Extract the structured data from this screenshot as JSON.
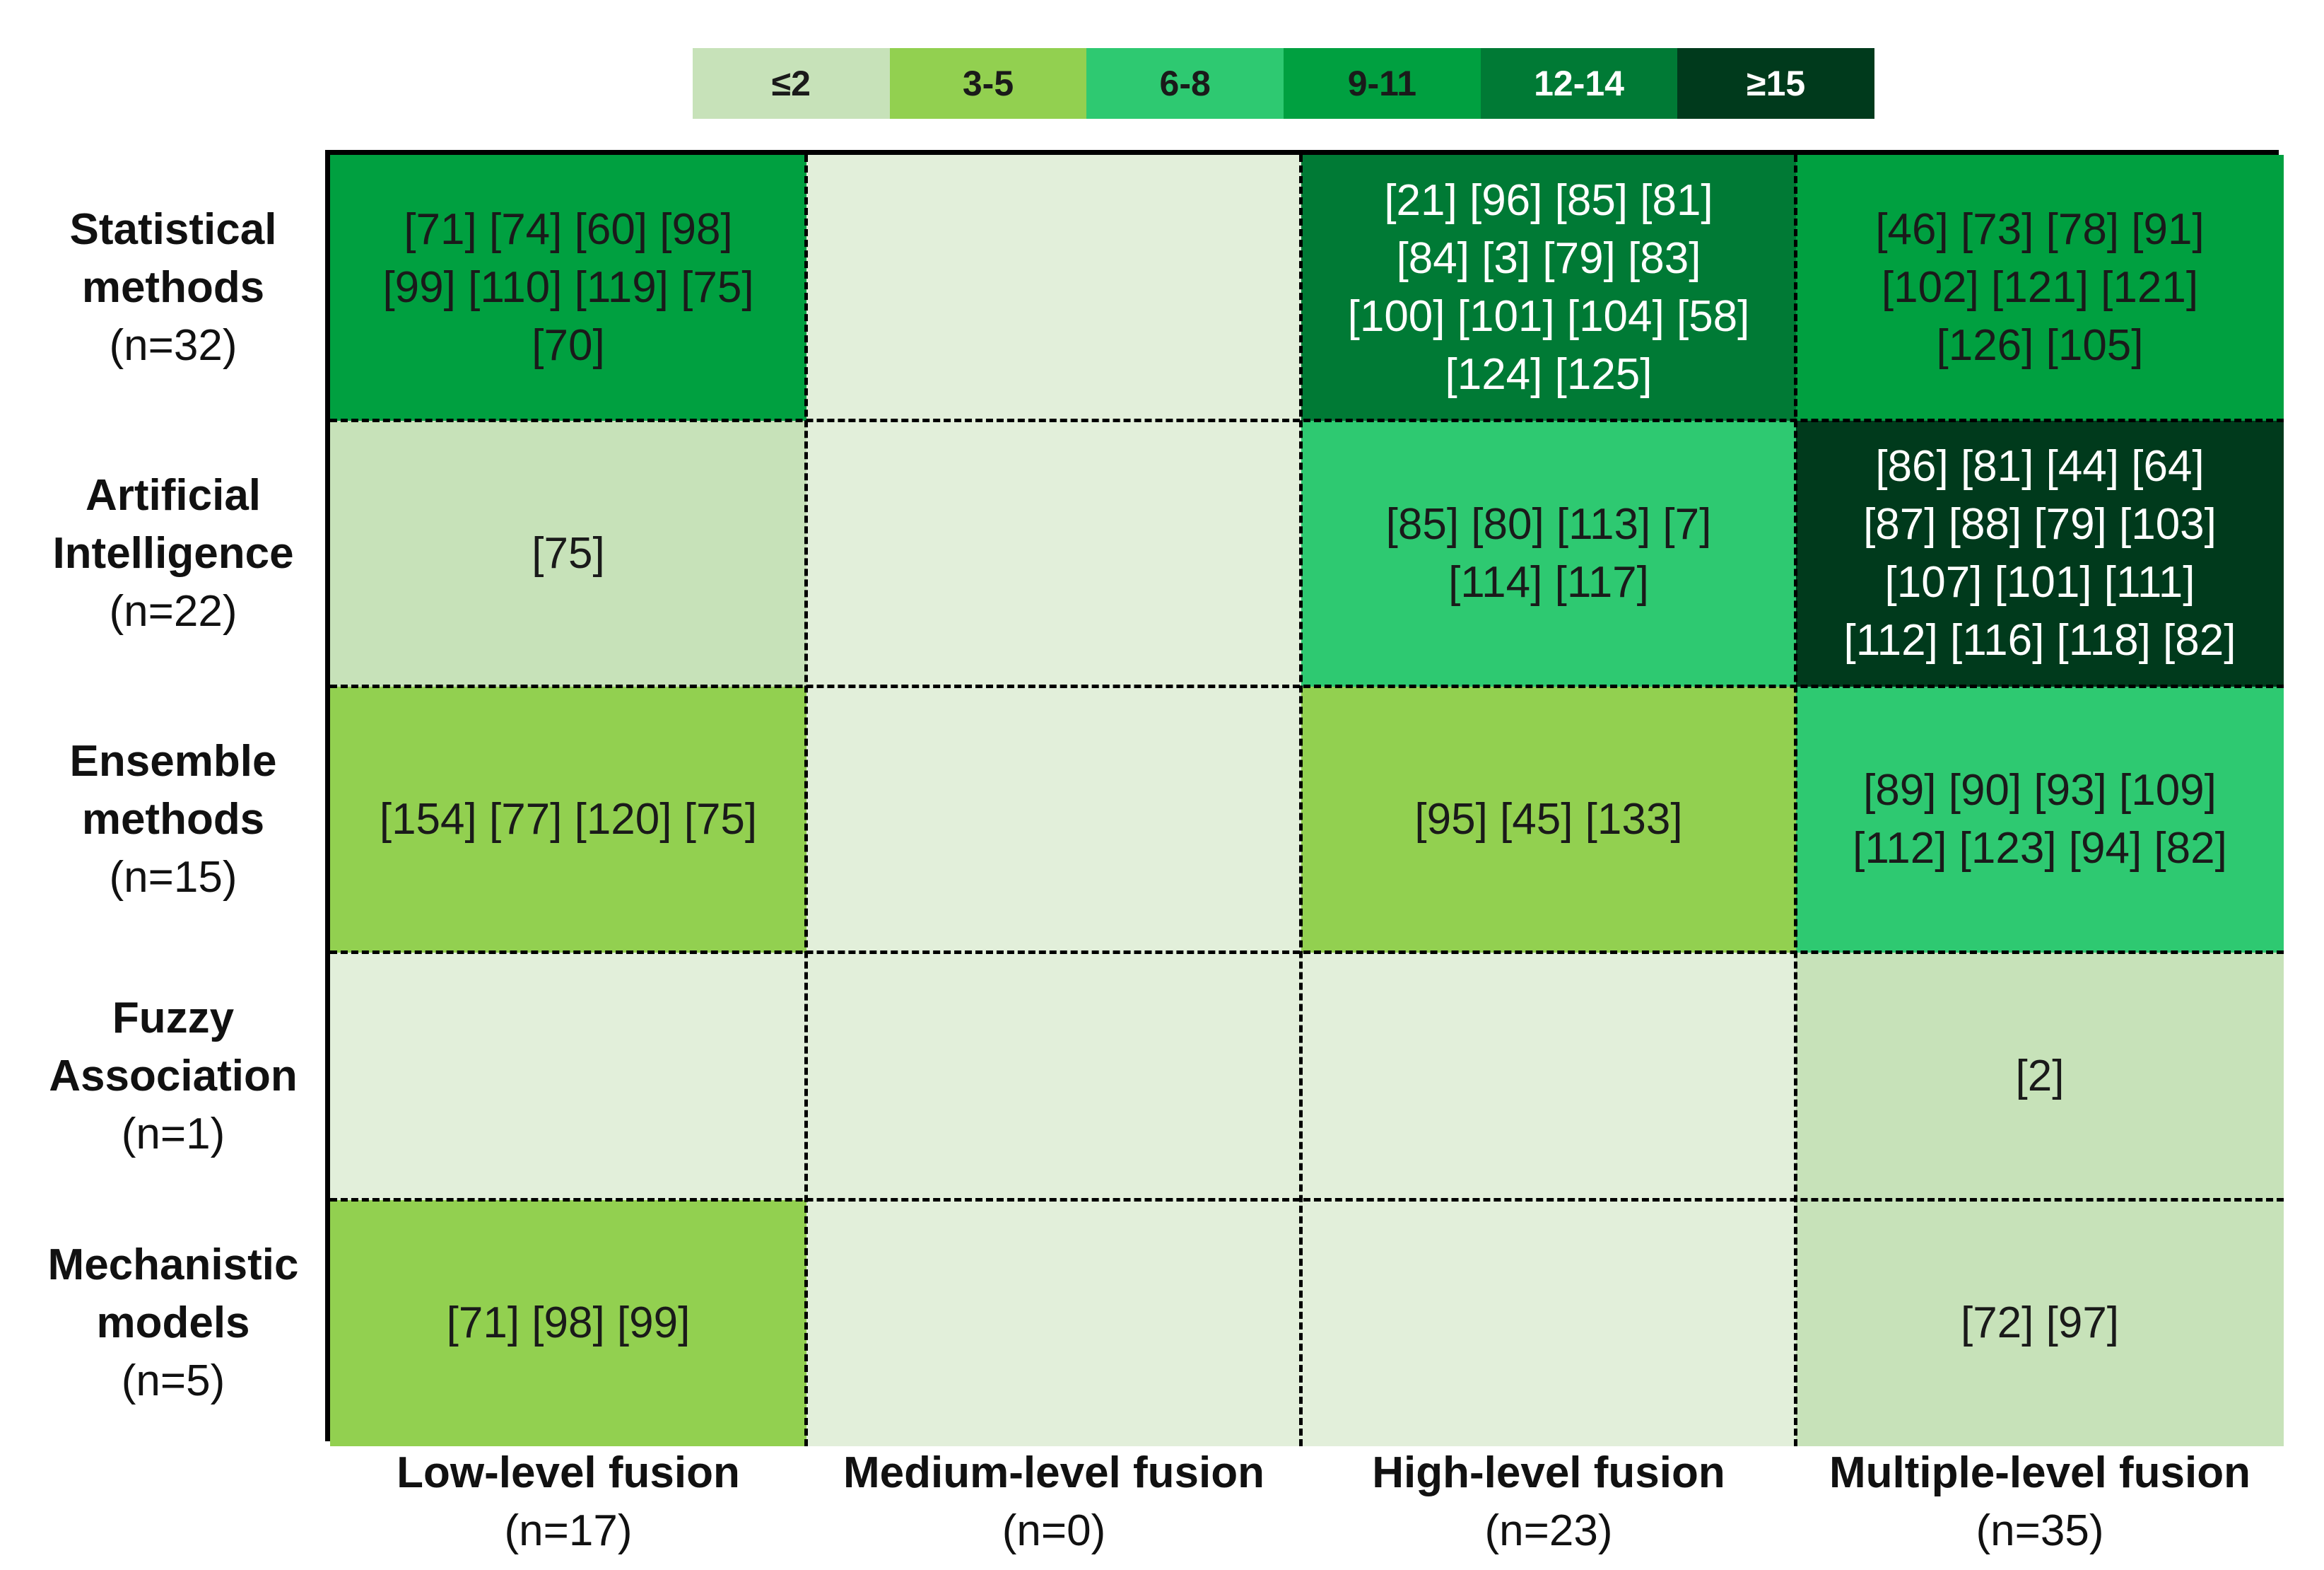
{
  "chart_data": {
    "type": "heatmap",
    "legend": {
      "bins": [
        {
          "label": "≤2",
          "color": "#c7e2b9",
          "text_color": "#1a1a1a"
        },
        {
          "label": "3-5",
          "color": "#92d050",
          "text_color": "#1a1a1a"
        },
        {
          "label": "6-8",
          "color": "#2ec971",
          "text_color": "#1a1a1a"
        },
        {
          "label": "9-11",
          "color": "#00a040",
          "text_color": "#1a1a1a"
        },
        {
          "label": "12-14",
          "color": "#007a35",
          "text_color": "#ffffff"
        },
        {
          "label": "≥15",
          "color": "#003a1c",
          "text_color": "#ffffff"
        }
      ]
    },
    "empty_color": "#e2efda",
    "columns": [
      {
        "name": "Low-level fusion",
        "count": "(n=17)"
      },
      {
        "name": "Medium-level fusion",
        "count": "(n=0)"
      },
      {
        "name": "High-level fusion",
        "count": "(n=23)"
      },
      {
        "name": "Multiple-level fusion",
        "count": "(n=35)"
      }
    ],
    "rows": [
      {
        "name_lines": [
          "Statistical",
          "methods"
        ],
        "count": "(n=32)"
      },
      {
        "name_lines": [
          "Artificial",
          "Intelligence"
        ],
        "count": "(n=22)"
      },
      {
        "name_lines": [
          "Ensemble",
          "methods"
        ],
        "count": "(n=15)"
      },
      {
        "name_lines": [
          "Fuzzy",
          "Association"
        ],
        "count": "(n=1)"
      },
      {
        "name_lines": [
          "Mechanistic",
          "models"
        ],
        "count": "(n=5)"
      }
    ],
    "cells": [
      [
        {
          "lines": [
            "[71] [74] [60] [98]",
            "[99] [110] [119] [75]",
            "[70]"
          ],
          "count": 9
        },
        {
          "lines": [],
          "count": 0
        },
        {
          "lines": [
            "[21] [96] [85] [81]",
            "[84] [3] [79] [83]",
            "[100] [101] [104] [58]",
            "[124] [125]"
          ],
          "count": 14
        },
        {
          "lines": [
            "[46] [73] [78] [91]",
            "[102] [121] [121]",
            "[126] [105]"
          ],
          "count": 9
        }
      ],
      [
        {
          "lines": [
            "[75]"
          ],
          "count": 1
        },
        {
          "lines": [],
          "count": 0
        },
        {
          "lines": [
            "[85] [80] [113] [7]",
            "[114] [117]"
          ],
          "count": 6
        },
        {
          "lines": [
            "[86] [81] [44] [64]",
            "[87] [88] [79] [103]",
            "[107] [101] [111]",
            "[112] [116] [118] [82]"
          ],
          "count": 15
        }
      ],
      [
        {
          "lines": [
            "[154] [77] [120] [75]"
          ],
          "count": 4
        },
        {
          "lines": [],
          "count": 0
        },
        {
          "lines": [
            "[95] [45] [133]"
          ],
          "count": 3
        },
        {
          "lines": [
            "[89] [90] [93] [109]",
            "[112] [123] [94] [82]"
          ],
          "count": 8
        }
      ],
      [
        {
          "lines": [],
          "count": 0
        },
        {
          "lines": [],
          "count": 0
        },
        {
          "lines": [],
          "count": 0
        },
        {
          "lines": [
            "[2]"
          ],
          "count": 1
        }
      ],
      [
        {
          "lines": [
            "[71] [98] [99]"
          ],
          "count": 3
        },
        {
          "lines": [],
          "count": 0
        },
        {
          "lines": [],
          "count": 0
        },
        {
          "lines": [
            "[72] [97]"
          ],
          "count": 2
        }
      ]
    ]
  }
}
